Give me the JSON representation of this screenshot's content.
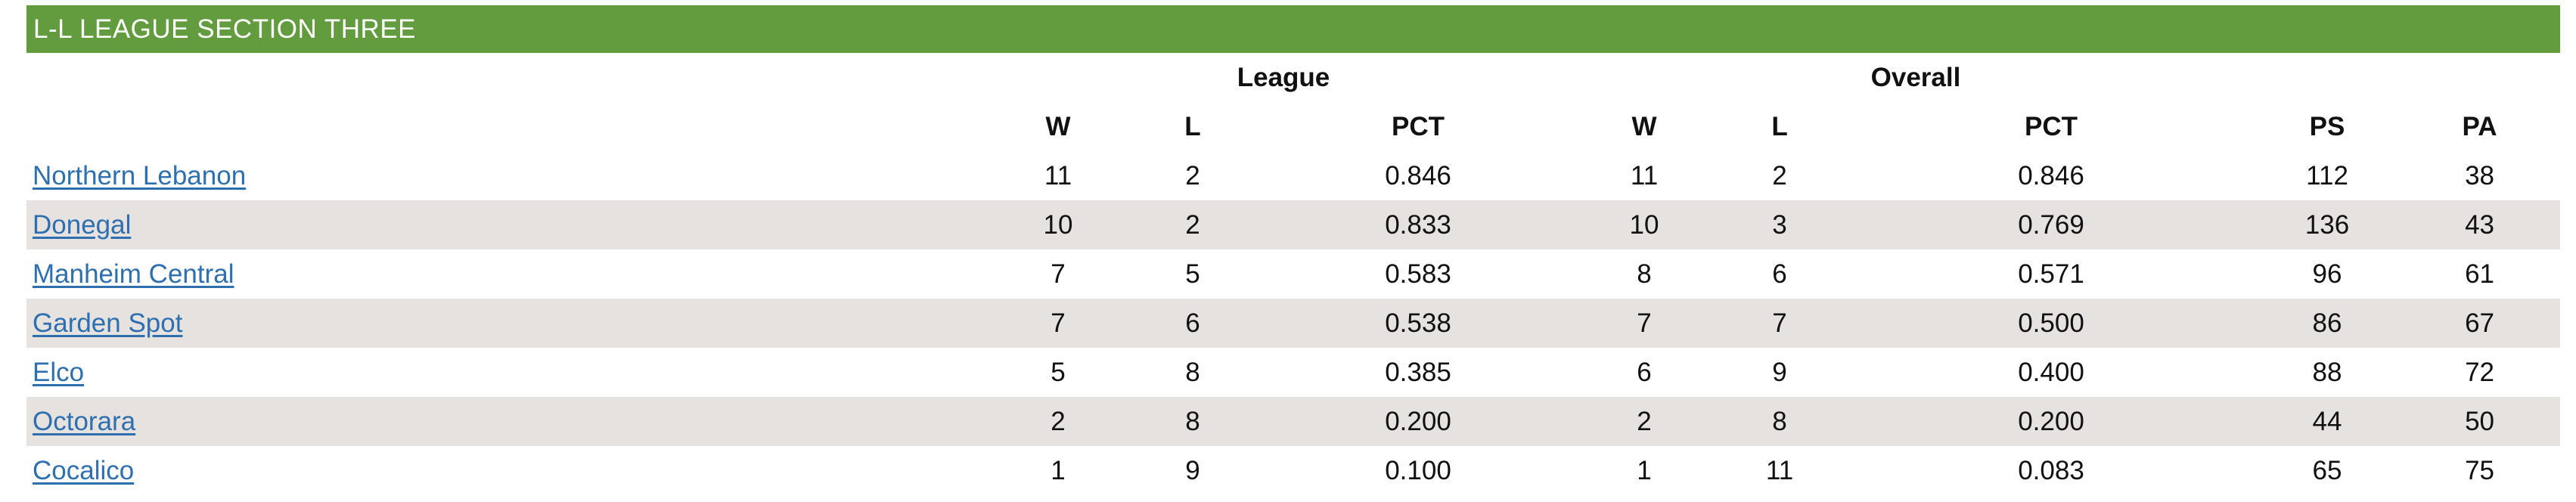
{
  "section": {
    "title": "L-L LEAGUE SECTION THREE"
  },
  "groups": {
    "league": "League",
    "overall": "Overall"
  },
  "columns": {
    "league_w": "W",
    "league_l": "L",
    "league_pct": "PCT",
    "overall_w": "W",
    "overall_l": "L",
    "overall_pct": "PCT",
    "ps": "PS",
    "pa": "PA"
  },
  "rows": [
    {
      "team": "Northern Lebanon",
      "lw": "11",
      "ll": "2",
      "lpct": "0.846",
      "ow": "11",
      "ol": "2",
      "opct": "0.846",
      "ps": "112",
      "pa": "38"
    },
    {
      "team": "Donegal",
      "lw": "10",
      "ll": "2",
      "lpct": "0.833",
      "ow": "10",
      "ol": "3",
      "opct": "0.769",
      "ps": "136",
      "pa": "43"
    },
    {
      "team": "Manheim Central",
      "lw": "7",
      "ll": "5",
      "lpct": "0.583",
      "ow": "8",
      "ol": "6",
      "opct": "0.571",
      "ps": "96",
      "pa": "61"
    },
    {
      "team": "Garden Spot",
      "lw": "7",
      "ll": "6",
      "lpct": "0.538",
      "ow": "7",
      "ol": "7",
      "opct": "0.500",
      "ps": "86",
      "pa": "67"
    },
    {
      "team": "Elco",
      "lw": "5",
      "ll": "8",
      "lpct": "0.385",
      "ow": "6",
      "ol": "9",
      "opct": "0.400",
      "ps": "88",
      "pa": "72"
    },
    {
      "team": "Octorara",
      "lw": "2",
      "ll": "8",
      "lpct": "0.200",
      "ow": "2",
      "ol": "8",
      "opct": "0.200",
      "ps": "44",
      "pa": "50"
    },
    {
      "team": "Cocalico",
      "lw": "1",
      "ll": "9",
      "lpct": "0.100",
      "ow": "1",
      "ol": "11",
      "opct": "0.083",
      "ps": "65",
      "pa": "75"
    }
  ]
}
